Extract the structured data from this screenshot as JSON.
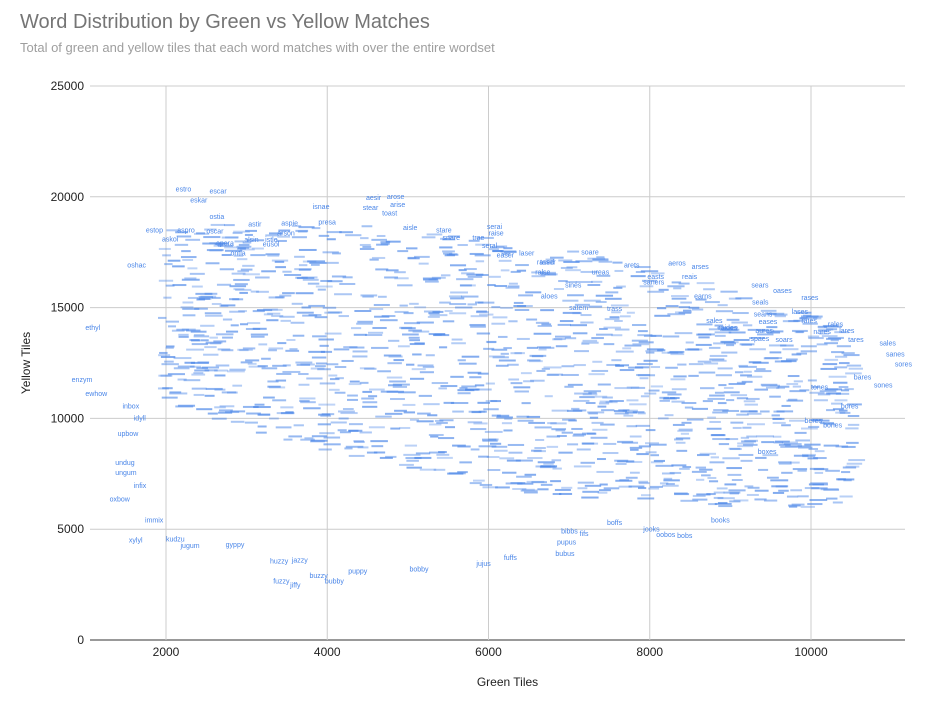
{
  "chart": {
    "title": "Word Distribution by Green vs Yellow Matches",
    "subtitle": "Total of green and yellow tiles that each word matches with over the entire wordset"
  },
  "chart_data": {
    "type": "scatter",
    "title": "Word Distribution by Green vs Yellow Matches",
    "subtitle": "Total of green and yellow tiles that each word matches with over the entire wordset",
    "xlabel": "Green Tiles",
    "ylabel": "Yellow Tiles",
    "xlim": [
      1000,
      11200
    ],
    "ylim": [
      0,
      25000
    ],
    "x_ticks": [
      2000,
      4000,
      6000,
      8000,
      10000
    ],
    "y_ticks": [
      0,
      5000,
      10000,
      15000,
      20000,
      25000
    ],
    "x_tick_labels": [
      "2000",
      "4000",
      "6000",
      "8000",
      "10000"
    ],
    "y_tick_labels": [
      "0",
      "5000",
      "10000",
      "15000",
      "20000",
      "25000"
    ],
    "grid": true,
    "point_style": "text-label",
    "colors": {
      "labels": "#4a86e8",
      "grid": "#cccccc",
      "axis": "#333333"
    },
    "points": [
      {
        "label": "estro",
        "x": 2120,
        "y": 20250
      },
      {
        "label": "escar",
        "x": 2540,
        "y": 20150
      },
      {
        "label": "eskar",
        "x": 2300,
        "y": 19750
      },
      {
        "label": "ostia",
        "x": 2540,
        "y": 19000
      },
      {
        "label": "estop",
        "x": 1750,
        "y": 18400
      },
      {
        "label": "aspro",
        "x": 2140,
        "y": 18400
      },
      {
        "label": "oscar",
        "x": 2500,
        "y": 18350
      },
      {
        "label": "askoi",
        "x": 1950,
        "y": 17980
      },
      {
        "label": "astir",
        "x": 3020,
        "y": 18650
      },
      {
        "label": "isnae",
        "x": 3820,
        "y": 19450
      },
      {
        "label": "aesir",
        "x": 4480,
        "y": 19850
      },
      {
        "label": "arose",
        "x": 4740,
        "y": 19900
      },
      {
        "label": "arise",
        "x": 4780,
        "y": 19550
      },
      {
        "label": "stear",
        "x": 4440,
        "y": 19400
      },
      {
        "label": "toast",
        "x": 4680,
        "y": 19150
      },
      {
        "label": "aspie",
        "x": 3430,
        "y": 18700
      },
      {
        "label": "presa",
        "x": 3890,
        "y": 18750
      },
      {
        "label": "arson",
        "x": 3380,
        "y": 18250
      },
      {
        "label": "alsin",
        "x": 2970,
        "y": 17950
      },
      {
        "label": "istle",
        "x": 3230,
        "y": 17950
      },
      {
        "label": "eusol",
        "x": 3200,
        "y": 17750
      },
      {
        "label": "opera",
        "x": 2620,
        "y": 17800
      },
      {
        "label": "ontia",
        "x": 2800,
        "y": 17350
      },
      {
        "label": "aisle",
        "x": 4940,
        "y": 18500
      },
      {
        "label": "stare",
        "x": 5350,
        "y": 18400
      },
      {
        "label": "serai",
        "x": 5980,
        "y": 18550
      },
      {
        "label": "raise",
        "x": 6000,
        "y": 18250
      },
      {
        "label": "snare",
        "x": 5430,
        "y": 18050
      },
      {
        "label": "trae",
        "x": 5800,
        "y": 18050
      },
      {
        "label": "seral",
        "x": 5920,
        "y": 17700
      },
      {
        "label": "easer",
        "x": 6100,
        "y": 17250
      },
      {
        "label": "laser",
        "x": 6380,
        "y": 17350
      },
      {
        "label": "taser",
        "x": 6640,
        "y": 16950
      },
      {
        "label": "soare",
        "x": 7150,
        "y": 17400
      },
      {
        "label": "oshac",
        "x": 1520,
        "y": 16800
      },
      {
        "label": "ethyl",
        "x": 1000,
        "y": 14000
      },
      {
        "label": "enzym",
        "x": 830,
        "y": 11650
      },
      {
        "label": "ewhow",
        "x": 1000,
        "y": 11000
      },
      {
        "label": "inbox",
        "x": 1460,
        "y": 10450
      },
      {
        "label": "idyll",
        "x": 1600,
        "y": 9900
      },
      {
        "label": "upbow",
        "x": 1400,
        "y": 9200
      },
      {
        "label": "undug",
        "x": 1370,
        "y": 7900
      },
      {
        "label": "ungum",
        "x": 1370,
        "y": 7450
      },
      {
        "label": "infix",
        "x": 1600,
        "y": 6850
      },
      {
        "label": "oxbow",
        "x": 1300,
        "y": 6250
      },
      {
        "label": "immix",
        "x": 1740,
        "y": 5300
      },
      {
        "label": "xylyl",
        "x": 1540,
        "y": 4400
      },
      {
        "label": "kudzu",
        "x": 2000,
        "y": 4450
      },
      {
        "label": "jugum",
        "x": 2180,
        "y": 4150
      },
      {
        "label": "gyppy",
        "x": 2740,
        "y": 4200
      },
      {
        "label": "huzzy",
        "x": 3290,
        "y": 3450
      },
      {
        "label": "jazzy",
        "x": 3560,
        "y": 3500
      },
      {
        "label": "buzzy",
        "x": 3780,
        "y": 2800
      },
      {
        "label": "fuzzy",
        "x": 3330,
        "y": 2550
      },
      {
        "label": "jiffy",
        "x": 3540,
        "y": 2380
      },
      {
        "label": "bubby",
        "x": 3970,
        "y": 2550
      },
      {
        "label": "puppy",
        "x": 4260,
        "y": 3000
      },
      {
        "label": "bobby",
        "x": 5020,
        "y": 3100
      },
      {
        "label": "jujus",
        "x": 5850,
        "y": 3350
      },
      {
        "label": "fuffs",
        "x": 6190,
        "y": 3600
      },
      {
        "label": "bubus",
        "x": 6830,
        "y": 3800
      },
      {
        "label": "pupus",
        "x": 6850,
        "y": 4300
      },
      {
        "label": "bibbs",
        "x": 6900,
        "y": 4800
      },
      {
        "label": "fifs",
        "x": 7130,
        "y": 4700
      },
      {
        "label": "boffs",
        "x": 7470,
        "y": 5200
      },
      {
        "label": "jooks",
        "x": 7920,
        "y": 4900
      },
      {
        "label": "oobos",
        "x": 8080,
        "y": 4650
      },
      {
        "label": "bobs",
        "x": 8340,
        "y": 4600
      },
      {
        "label": "books",
        "x": 8760,
        "y": 5300
      },
      {
        "label": "bores",
        "x": 10370,
        "y": 10450
      },
      {
        "label": "bones",
        "x": 10150,
        "y": 9600
      },
      {
        "label": "boxes",
        "x": 9340,
        "y": 8400
      },
      {
        "label": "beres",
        "x": 9920,
        "y": 9800
      },
      {
        "label": "bares",
        "x": 10530,
        "y": 11750
      },
      {
        "label": "sones",
        "x": 10780,
        "y": 11400
      },
      {
        "label": "sores",
        "x": 11040,
        "y": 12350
      },
      {
        "label": "sanes",
        "x": 10930,
        "y": 12800
      },
      {
        "label": "sales",
        "x": 10850,
        "y": 13300
      },
      {
        "label": "tares",
        "x": 10460,
        "y": 13450
      },
      {
        "label": "lares",
        "x": 10350,
        "y": 13850
      },
      {
        "label": "nares",
        "x": 10030,
        "y": 13800
      },
      {
        "label": "rates",
        "x": 9880,
        "y": 14300
      },
      {
        "label": "rales",
        "x": 10210,
        "y": 14150
      },
      {
        "label": "lases",
        "x": 9760,
        "y": 14700
      },
      {
        "label": "rases",
        "x": 9880,
        "y": 15350
      },
      {
        "label": "oases",
        "x": 9530,
        "y": 15650
      },
      {
        "label": "seals",
        "x": 9270,
        "y": 15150
      },
      {
        "label": "sears",
        "x": 9260,
        "y": 15900
      },
      {
        "label": "seans",
        "x": 9290,
        "y": 14600
      },
      {
        "label": "eases",
        "x": 9350,
        "y": 14250
      },
      {
        "label": "aures",
        "x": 9310,
        "y": 13850
      },
      {
        "label": "spaes",
        "x": 9250,
        "y": 13500
      },
      {
        "label": "soars",
        "x": 9560,
        "y": 13450
      },
      {
        "label": "tones",
        "x": 10000,
        "y": 11300
      },
      {
        "label": "aeros",
        "x": 8230,
        "y": 16900
      },
      {
        "label": "arses",
        "x": 8520,
        "y": 16750
      },
      {
        "label": "easts",
        "x": 7970,
        "y": 16300
      },
      {
        "label": "reais",
        "x": 8400,
        "y": 16300
      },
      {
        "label": "saners",
        "x": 7920,
        "y": 16050
      },
      {
        "label": "earns",
        "x": 8550,
        "y": 15400
      },
      {
        "label": "sales",
        "x": 8700,
        "y": 14300
      },
      {
        "label": "raides",
        "x": 8850,
        "y": 14000
      },
      {
        "label": "arets",
        "x": 7680,
        "y": 16800
      },
      {
        "label": "ureas",
        "x": 7280,
        "y": 16500
      },
      {
        "label": "ralse",
        "x": 6580,
        "y": 16500
      },
      {
        "label": "rased",
        "x": 6600,
        "y": 16950
      },
      {
        "label": "aloes",
        "x": 6650,
        "y": 15400
      },
      {
        "label": "satem",
        "x": 7000,
        "y": 14900
      },
      {
        "label": "trass",
        "x": 7470,
        "y": 14850
      },
      {
        "label": "sines",
        "x": 6950,
        "y": 15900
      }
    ]
  }
}
